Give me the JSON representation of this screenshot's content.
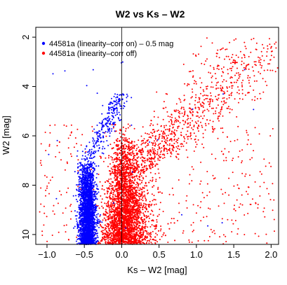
{
  "chart_data": {
    "type": "scatter",
    "title": "W2 vs Ks – W2",
    "xlabel": "Ks – W2 [mag]",
    "ylabel": "W2 [mag]",
    "xlim": [
      -1.15,
      2.1
    ],
    "ylim": [
      10.4,
      1.6
    ],
    "y_inverted": true,
    "x_ticks": [
      -1.0,
      -0.5,
      0.0,
      0.5,
      1.0,
      1.5,
      2.0
    ],
    "x_tick_labels": [
      "−1.0",
      "−0.5",
      "0.0",
      "0.5",
      "1.0",
      "1.5",
      "2.0"
    ],
    "y_ticks": [
      2,
      4,
      6,
      8,
      10
    ],
    "y_tick_labels": [
      "2",
      "4",
      "6",
      "8",
      "10"
    ],
    "vertical_line": {
      "x": 0.0
    },
    "grid": false,
    "legend_position": "top-left",
    "series": [
      {
        "name": "44581a (linearity–corr on) – 0.5 mag",
        "color": "#0000ff",
        "description_points": [
          {
            "x": -0.5,
            "y": 9.5
          },
          {
            "x": -0.45,
            "y": 9.0
          },
          {
            "x": -0.48,
            "y": 8.5
          },
          {
            "x": -0.42,
            "y": 8.0
          },
          {
            "x": -0.4,
            "y": 7.5
          },
          {
            "x": -0.38,
            "y": 7.0
          },
          {
            "x": -0.3,
            "y": 6.5
          },
          {
            "x": -0.25,
            "y": 6.0
          },
          {
            "x": -0.2,
            "y": 5.5
          },
          {
            "x": -0.15,
            "y": 5.0
          },
          {
            "x": -0.05,
            "y": 4.5
          },
          {
            "x": 0.05,
            "y": 4.3
          }
        ]
      },
      {
        "name": "44581a (linearity–corr off)",
        "color": "#ff0000",
        "description_points": [
          {
            "x": 0.0,
            "y": 10.0
          },
          {
            "x": 0.02,
            "y": 9.0
          },
          {
            "x": 0.03,
            "y": 8.0
          },
          {
            "x": 0.05,
            "y": 7.0
          },
          {
            "x": 0.1,
            "y": 6.0
          },
          {
            "x": 0.2,
            "y": 5.5
          },
          {
            "x": 0.35,
            "y": 5.0
          },
          {
            "x": 0.6,
            "y": 4.3
          },
          {
            "x": 0.9,
            "y": 3.8
          },
          {
            "x": 1.2,
            "y": 3.3
          },
          {
            "x": 1.5,
            "y": 2.7
          },
          {
            "x": 1.8,
            "y": 2.2
          }
        ]
      }
    ]
  }
}
